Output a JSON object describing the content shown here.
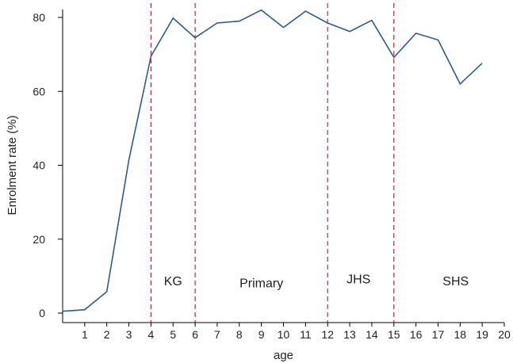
{
  "chart_data": {
    "type": "line",
    "xlabel": "age",
    "ylabel": "Enrolment rate (%)",
    "xlim": [
      0,
      20
    ],
    "ylim": [
      0,
      80
    ],
    "x_ticks": [
      1,
      2,
      3,
      4,
      5,
      6,
      7,
      8,
      9,
      10,
      11,
      12,
      13,
      14,
      15,
      16,
      17,
      18,
      19,
      20
    ],
    "y_ticks": [
      0,
      20,
      40,
      60,
      80
    ],
    "grid": false,
    "series": [
      {
        "color": "#2b5c8f",
        "x": [
          0,
          1,
          2,
          3,
          4,
          5,
          6,
          7,
          8,
          9,
          10,
          11,
          12,
          13,
          14,
          15,
          16,
          17,
          18,
          19
        ],
        "y": [
          0.5,
          0.9,
          5.8,
          41.5,
          69.5,
          79.8,
          74.5,
          78.5,
          79.0,
          82.0,
          77.3,
          81.7,
          78.5,
          76.2,
          79.2,
          69.2,
          75.7,
          73.9,
          62.0,
          67.6
        ]
      }
    ],
    "vertical_lines": {
      "x": [
        4,
        6,
        12,
        15
      ],
      "color": "#c0283a",
      "style": "dashed"
    },
    "regions": [
      {
        "label": "KG",
        "x": 5.0,
        "y": 7.5
      },
      {
        "label": "Primary",
        "x": 9.0,
        "y": 7.0
      },
      {
        "label": "JHS",
        "x": 13.4,
        "y": 8.0
      },
      {
        "label": "SHS",
        "x": 17.8,
        "y": 7.5
      }
    ]
  }
}
